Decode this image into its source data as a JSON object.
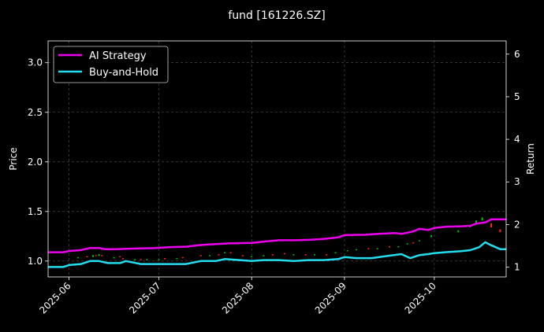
{
  "chart_data": {
    "type": "line",
    "title": "fund [161226.SZ]",
    "ylabel_left": "Price",
    "ylabel_right": "Return",
    "x_range": [
      "2025-05-25",
      "2025-10-25"
    ],
    "x_ticks": [
      {
        "date": "2025-06-01",
        "label": "2025-06"
      },
      {
        "date": "2025-07-01",
        "label": "2025-07"
      },
      {
        "date": "2025-08-01",
        "label": "2025-08"
      },
      {
        "date": "2025-09-01",
        "label": "2025-09"
      },
      {
        "date": "2025-10-01",
        "label": "2025-10"
      }
    ],
    "ylim_left": [
      0.84,
      3.22
    ],
    "ylim_right": [
      0.77,
      6.31
    ],
    "yticks_left": [
      "1.0",
      "1.5",
      "2.0",
      "2.5",
      "3.0"
    ],
    "yticks_right": [
      "1",
      "2",
      "3",
      "4",
      "5",
      "6"
    ],
    "grid": true,
    "legend_position": "top-left",
    "series": [
      {
        "name": "AI Strategy",
        "color": "#ee00ee",
        "axis": "right",
        "x": [
          "2025-05-25",
          "2025-05-30",
          "2025-06-01",
          "2025-06-05",
          "2025-06-08",
          "2025-06-11",
          "2025-06-13",
          "2025-06-17",
          "2025-06-20",
          "2025-06-25",
          "2025-06-30",
          "2025-07-05",
          "2025-07-10",
          "2025-07-15",
          "2025-07-20",
          "2025-07-25",
          "2025-08-01",
          "2025-08-05",
          "2025-08-10",
          "2025-08-15",
          "2025-08-20",
          "2025-08-25",
          "2025-08-30",
          "2025-09-01",
          "2025-09-08",
          "2025-09-10",
          "2025-09-15",
          "2025-09-18",
          "2025-09-20",
          "2025-09-24",
          "2025-09-26",
          "2025-09-29",
          "2025-10-01",
          "2025-10-05",
          "2025-10-10",
          "2025-10-13",
          "2025-10-15",
          "2025-10-18",
          "2025-10-20",
          "2025-10-25"
        ],
        "values": [
          1.35,
          1.35,
          1.38,
          1.4,
          1.45,
          1.45,
          1.42,
          1.42,
          1.43,
          1.44,
          1.45,
          1.47,
          1.48,
          1.52,
          1.54,
          1.56,
          1.57,
          1.6,
          1.63,
          1.63,
          1.64,
          1.66,
          1.7,
          1.75,
          1.76,
          1.77,
          1.79,
          1.8,
          1.78,
          1.84,
          1.9,
          1.87,
          1.92,
          1.95,
          1.96,
          1.97,
          2.02,
          2.05,
          2.12,
          2.12
        ]
      },
      {
        "name": "Buy-and-Hold",
        "color": "#22dded",
        "axis": "left",
        "x": [
          "2025-05-25",
          "2025-05-30",
          "2025-06-01",
          "2025-06-05",
          "2025-06-08",
          "2025-06-11",
          "2025-06-14",
          "2025-06-18",
          "2025-06-20",
          "2025-06-25",
          "2025-06-30",
          "2025-07-05",
          "2025-07-10",
          "2025-07-15",
          "2025-07-20",
          "2025-07-23",
          "2025-07-28",
          "2025-08-01",
          "2025-08-05",
          "2025-08-10",
          "2025-08-15",
          "2025-08-20",
          "2025-08-25",
          "2025-08-30",
          "2025-09-01",
          "2025-09-05",
          "2025-09-10",
          "2025-09-15",
          "2025-09-20",
          "2025-09-23",
          "2025-09-26",
          "2025-09-29",
          "2025-10-01",
          "2025-10-05",
          "2025-10-10",
          "2025-10-13",
          "2025-10-16",
          "2025-10-18",
          "2025-10-20",
          "2025-10-23",
          "2025-10-25"
        ],
        "values": [
          0.94,
          0.94,
          0.96,
          0.97,
          1.0,
          1.0,
          0.98,
          0.98,
          1.0,
          0.97,
          0.97,
          0.97,
          0.97,
          1.0,
          1.0,
          1.02,
          1.01,
          1.0,
          1.01,
          1.01,
          1.0,
          1.01,
          1.01,
          1.02,
          1.04,
          1.03,
          1.03,
          1.05,
          1.07,
          1.03,
          1.06,
          1.07,
          1.08,
          1.09,
          1.1,
          1.11,
          1.14,
          1.19,
          1.16,
          1.12,
          1.12
        ]
      }
    ],
    "candles": {
      "up_color": "#00bb00",
      "down_color": "#ff2020",
      "x": [
        "2025-06-04",
        "2025-06-07",
        "2025-06-09",
        "2025-06-10",
        "2025-06-11",
        "2025-06-12",
        "2025-06-16",
        "2025-06-18",
        "2025-06-19",
        "2025-06-23",
        "2025-06-25",
        "2025-06-27",
        "2025-07-01",
        "2025-07-03",
        "2025-07-07",
        "2025-07-09",
        "2025-07-15",
        "2025-07-18",
        "2025-07-21",
        "2025-07-23",
        "2025-07-25",
        "2025-07-29",
        "2025-08-01",
        "2025-08-05",
        "2025-08-08",
        "2025-08-12",
        "2025-08-15",
        "2025-08-19",
        "2025-08-22",
        "2025-08-26",
        "2025-08-29",
        "2025-09-02",
        "2025-09-05",
        "2025-09-09",
        "2025-09-12",
        "2025-09-16",
        "2025-09-19",
        "2025-09-22",
        "2025-09-24",
        "2025-09-26",
        "2025-09-30",
        "2025-10-09",
        "2025-10-13",
        "2025-10-15",
        "2025-10-17",
        "2025-10-20",
        "2025-10-23"
      ],
      "open": [
        1.03,
        1.05,
        1.04,
        1.06,
        1.05,
        1.06,
        1.03,
        1.05,
        1.03,
        1.01,
        1.02,
        1.01,
        1.01,
        1.03,
        1.02,
        1.04,
        1.06,
        1.05,
        1.07,
        1.08,
        1.09,
        1.06,
        1.04,
        1.05,
        1.07,
        1.08,
        1.06,
        1.07,
        1.06,
        1.07,
        1.08,
        1.1,
        1.11,
        1.13,
        1.12,
        1.15,
        1.14,
        1.17,
        1.19,
        1.2,
        1.24,
        1.29,
        1.34,
        1.37,
        1.41,
        1.38,
        1.32
      ],
      "close": [
        1.04,
        1.04,
        1.06,
        1.05,
        1.07,
        1.05,
        1.04,
        1.04,
        1.02,
        1.02,
        1.01,
        1.02,
        1.02,
        1.02,
        1.03,
        1.03,
        1.05,
        1.06,
        1.06,
        1.09,
        1.08,
        1.05,
        1.05,
        1.06,
        1.06,
        1.07,
        1.07,
        1.06,
        1.07,
        1.06,
        1.09,
        1.11,
        1.12,
        1.12,
        1.13,
        1.14,
        1.15,
        1.18,
        1.18,
        1.21,
        1.26,
        1.31,
        1.36,
        1.41,
        1.44,
        1.34,
        1.29
      ]
    }
  }
}
